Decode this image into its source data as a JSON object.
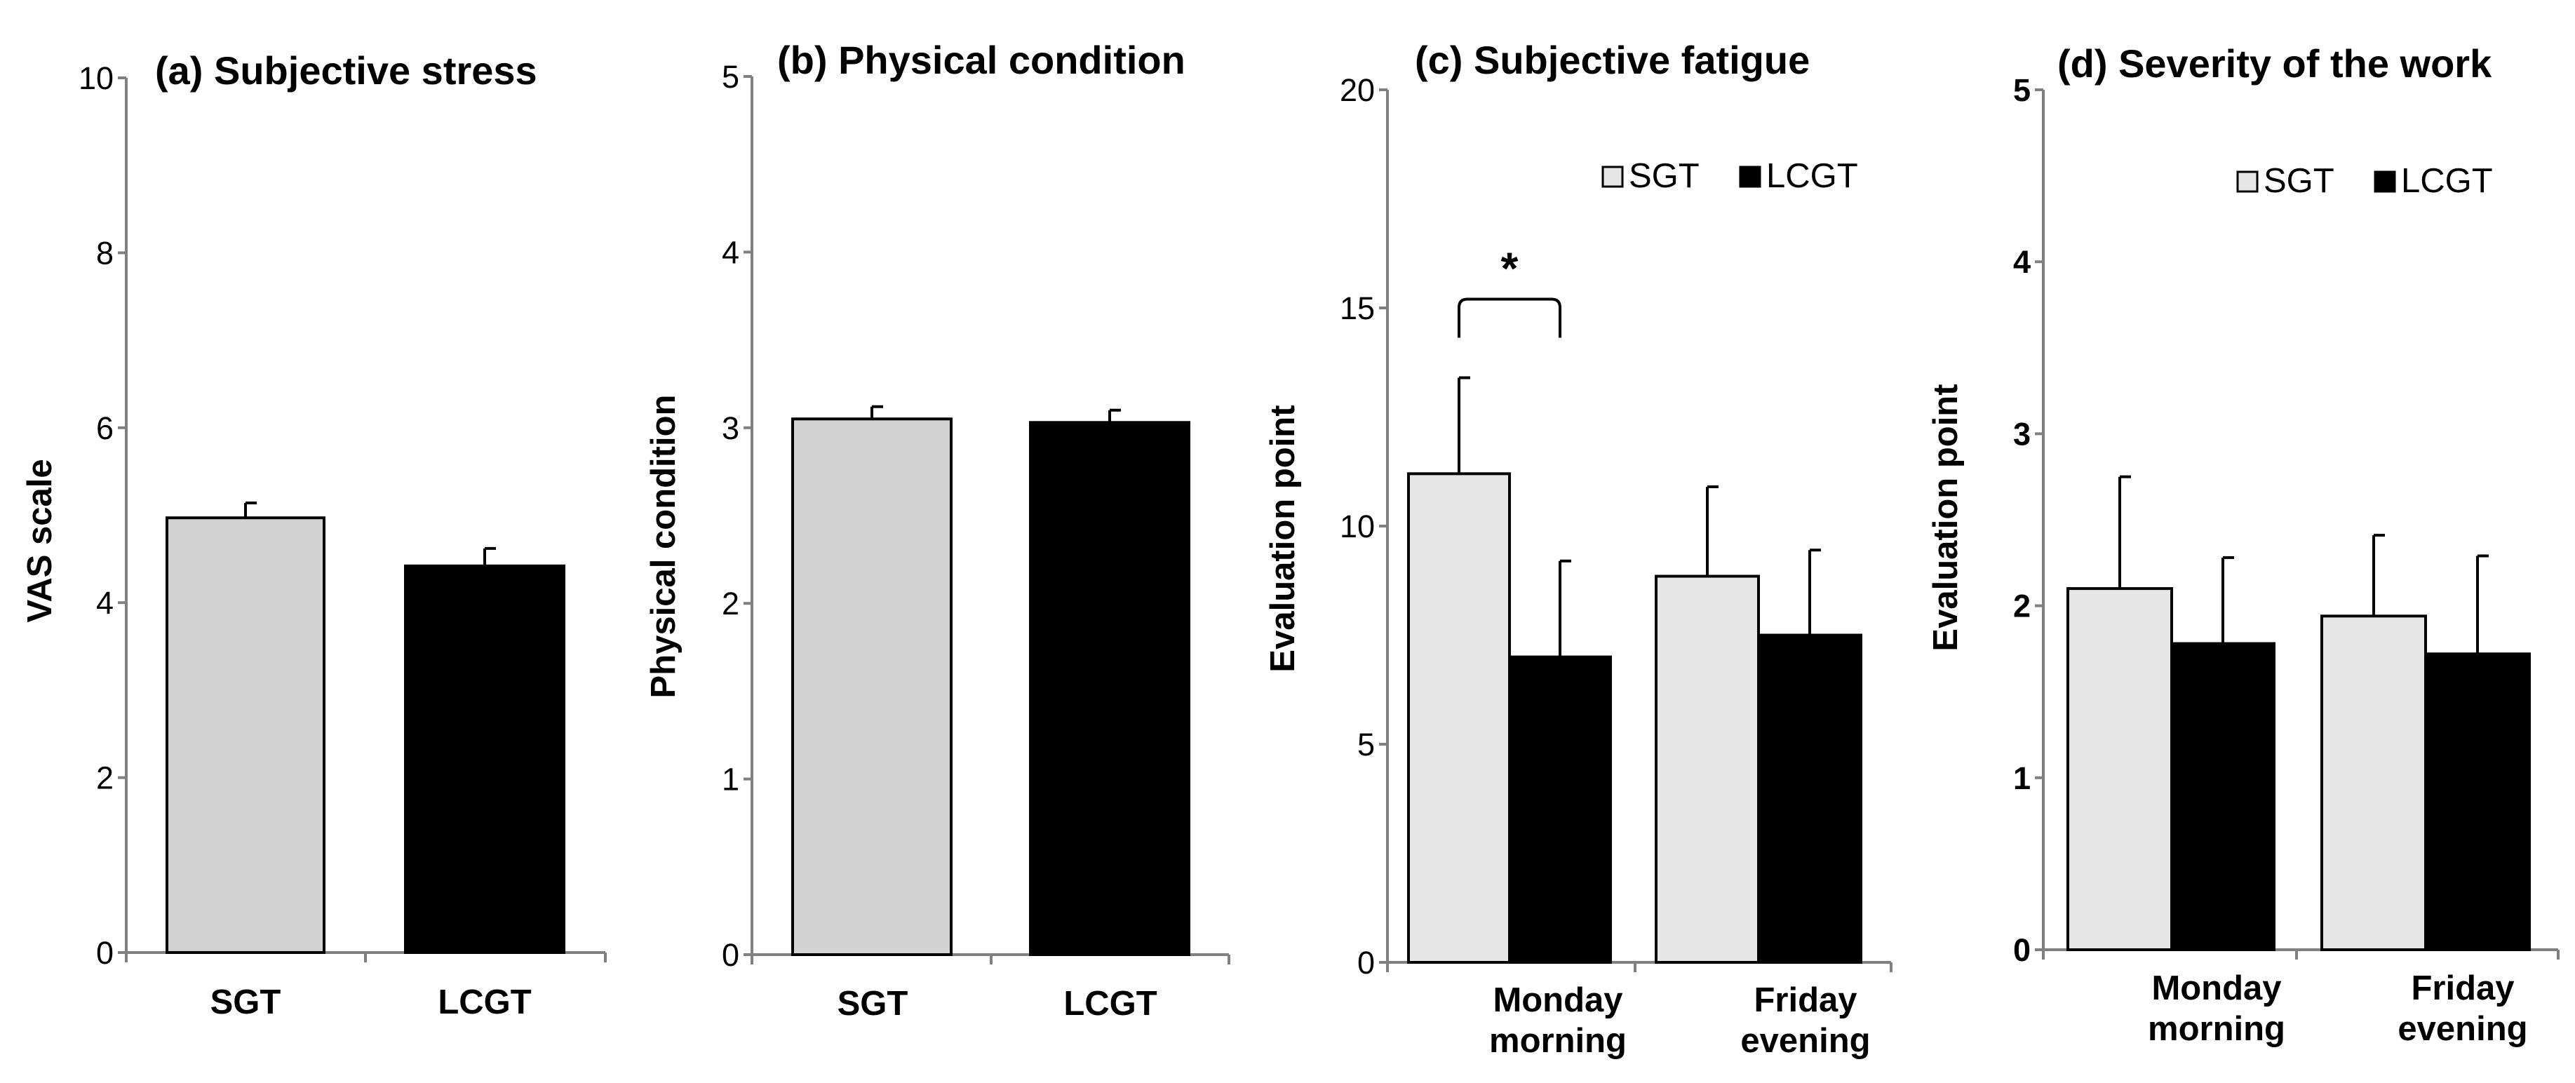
{
  "chart_data": [
    {
      "type": "bar",
      "title": "(a) Subjective stress",
      "xlabel": "",
      "ylabel": "VAS scale",
      "ylim": [
        0,
        10
      ],
      "yticks": [
        "0",
        "2",
        "4",
        "6",
        "8",
        "10"
      ],
      "ytick_values": [
        0,
        2,
        4,
        6,
        8,
        10
      ],
      "categories": [
        "SGT",
        "LCGT"
      ],
      "series": [
        {
          "name": "SGT",
          "color": "#d3d3d3",
          "values": [
            4.97,
            null
          ],
          "errors": [
            0.17,
            null
          ]
        },
        {
          "name": "LCGT",
          "color": "#000000",
          "values": [
            null,
            4.42
          ],
          "errors": [
            null,
            0.2
          ]
        }
      ],
      "legend": null,
      "annotations": []
    },
    {
      "type": "bar",
      "title": "(b) Physical condition",
      "xlabel": "",
      "ylabel": "Physical condition",
      "ylim": [
        0,
        5
      ],
      "yticks": [
        "0",
        "1",
        "2",
        "3",
        "4",
        "5"
      ],
      "ytick_values": [
        0,
        1,
        2,
        3,
        4,
        5
      ],
      "categories": [
        "SGT",
        "LCGT"
      ],
      "series": [
        {
          "name": "SGT",
          "color": "#d3d3d3",
          "values": [
            3.05,
            null
          ],
          "errors": [
            0.07,
            null
          ]
        },
        {
          "name": "LCGT",
          "color": "#000000",
          "values": [
            null,
            3.03
          ],
          "errors": [
            null,
            0.07
          ]
        }
      ],
      "legend": null,
      "annotations": []
    },
    {
      "type": "bar",
      "title": "(c) Subjective fatigue",
      "xlabel": "",
      "ylabel": "Evaluation point",
      "ylim": [
        0,
        20
      ],
      "yticks": [
        "0",
        "5",
        "10",
        "15",
        "20"
      ],
      "ytick_values": [
        0,
        5,
        10,
        15,
        20
      ],
      "categories": [
        "Monday\nmorning",
        "Friday\nevening"
      ],
      "series": [
        {
          "name": "SGT",
          "color": "#e6e6e6",
          "values": [
            11.2,
            8.85
          ],
          "errors": [
            2.2,
            2.05
          ]
        },
        {
          "name": "LCGT",
          "color": "#000000",
          "values": [
            7.0,
            7.5
          ],
          "errors": [
            2.2,
            1.95
          ]
        }
      ],
      "legend": {
        "position": "top-right",
        "entries": [
          "SGT",
          "LCGT"
        ]
      },
      "annotations": [
        {
          "text": "*",
          "type": "significance-bracket",
          "between": [
            "SGT",
            "LCGT"
          ],
          "category": "Monday\nmorning",
          "y": 15.2
        }
      ]
    },
    {
      "type": "bar",
      "title": "(d) Severity of the work",
      "xlabel": "",
      "ylabel": "Evaluation point",
      "ylim": [
        0,
        5
      ],
      "yticks": [
        "0",
        "1",
        "2",
        "3",
        "4",
        "5"
      ],
      "ytick_values": [
        0,
        1,
        2,
        3,
        4,
        5
      ],
      "categories": [
        "Monday\nmorning",
        "Friday\nevening"
      ],
      "series": [
        {
          "name": "SGT",
          "color": "#e6e6e6",
          "values": [
            2.1,
            1.94
          ],
          "errors": [
            0.65,
            0.47
          ]
        },
        {
          "name": "LCGT",
          "color": "#000000",
          "values": [
            1.78,
            1.72
          ],
          "errors": [
            0.5,
            0.57
          ]
        }
      ],
      "legend": {
        "position": "top-right",
        "entries": [
          "SGT",
          "LCGT"
        ]
      },
      "annotations": []
    }
  ]
}
